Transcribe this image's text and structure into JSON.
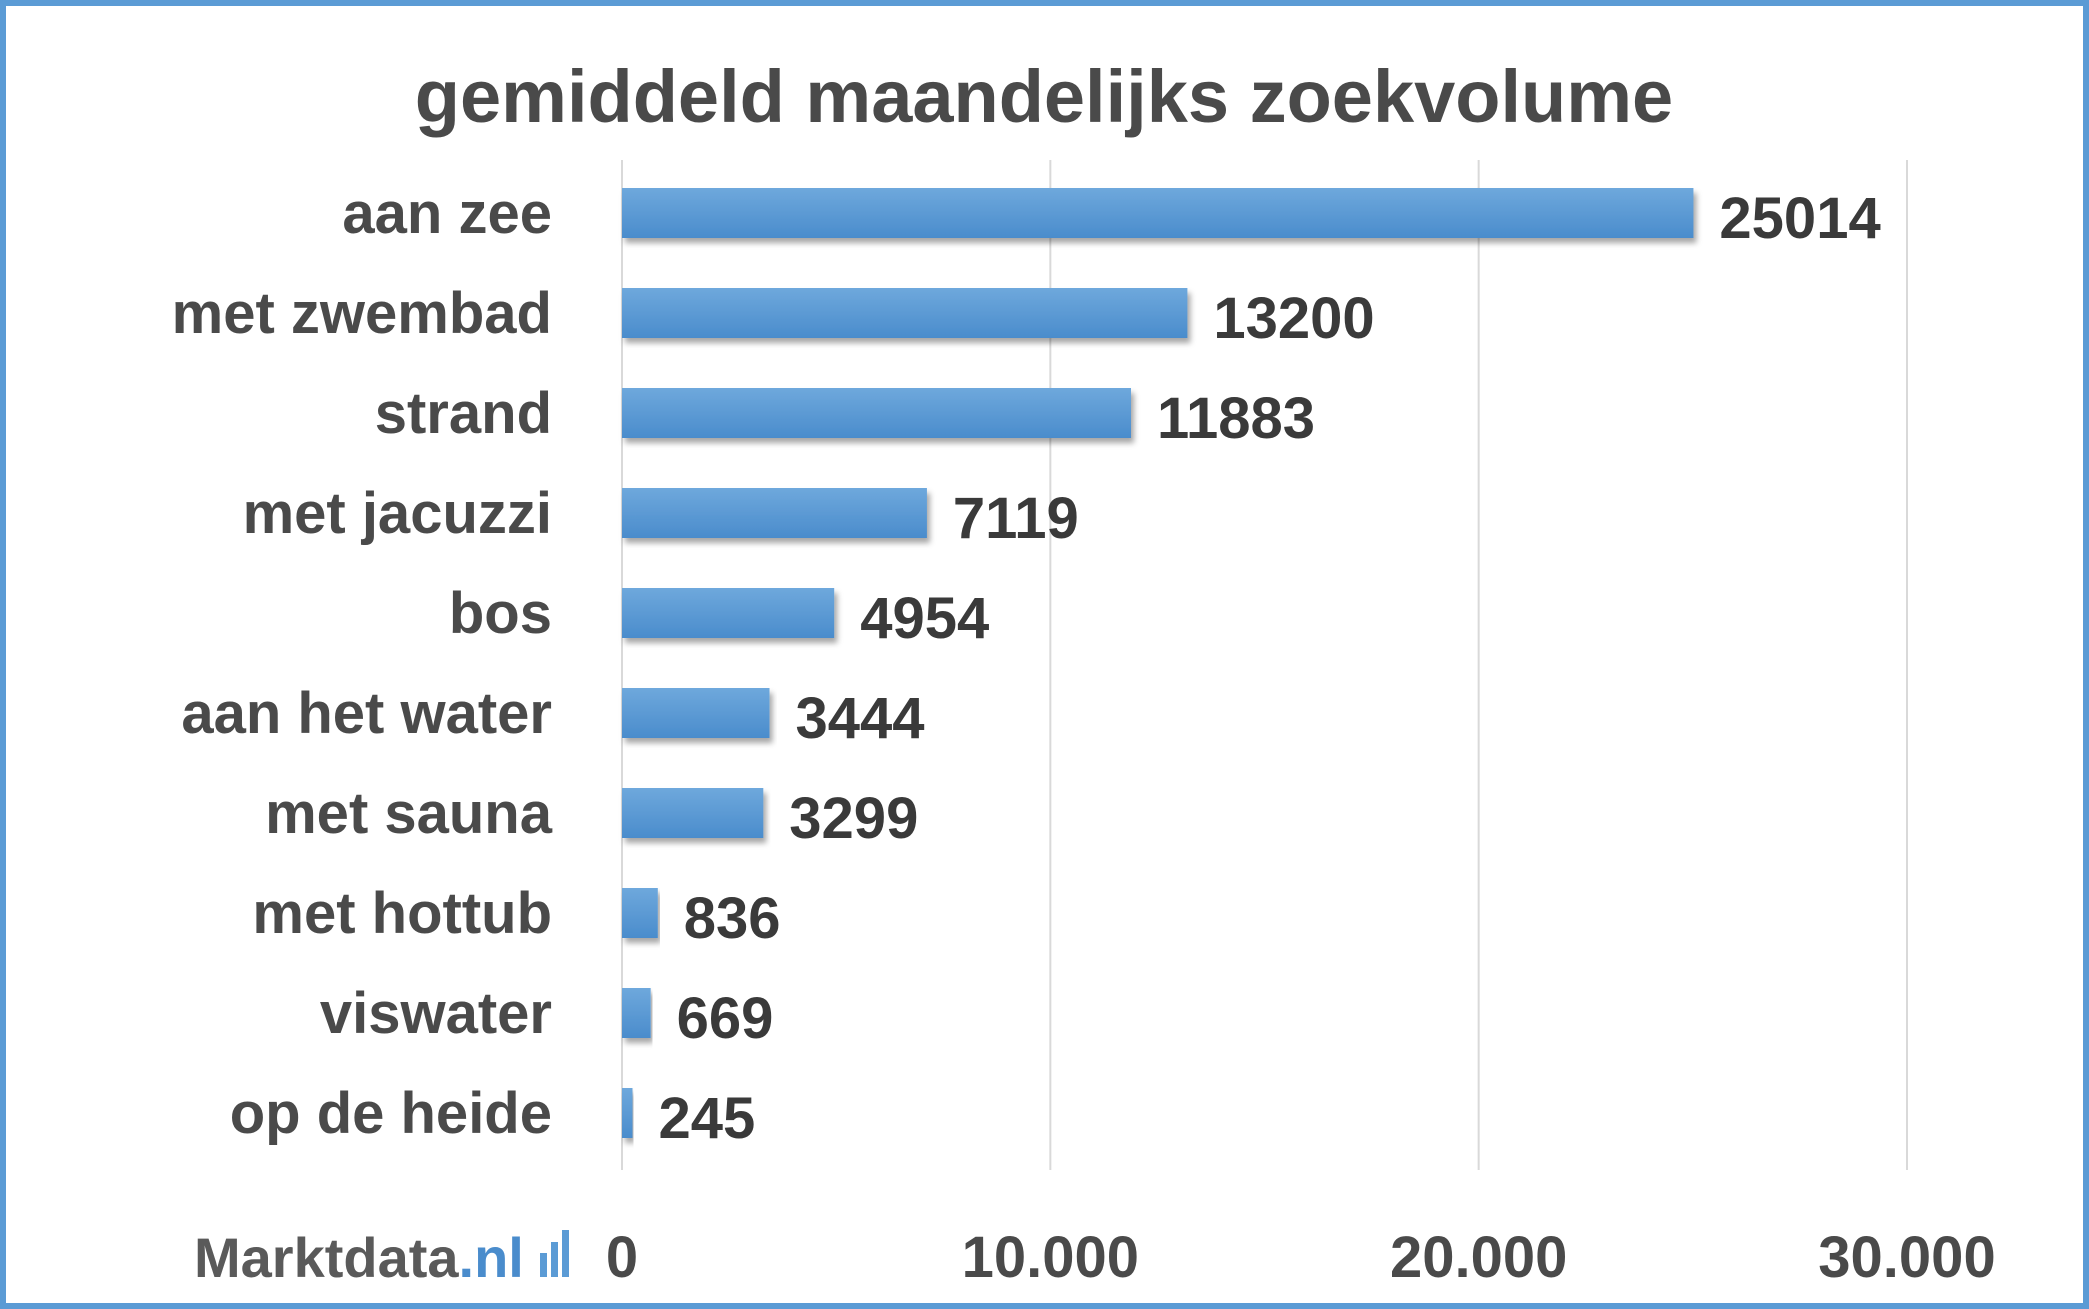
{
  "logo": {
    "text": "Marktdata",
    "suffix": ".nl"
  },
  "colors": {
    "bar": "#5b9bd5",
    "frame": "#5b9bd5",
    "grid": "#d9d9d9",
    "text": "#4a4a4a"
  },
  "chart_data": {
    "type": "bar",
    "orientation": "horizontal",
    "title": "gemiddeld maandelijks zoekvolume",
    "categories": [
      "aan zee",
      "met zwembad",
      "strand",
      "met jacuzzi",
      "bos",
      "aan het water",
      "met sauna",
      "met hottub",
      "viswater",
      "op de heide"
    ],
    "values": [
      25014,
      13200,
      11883,
      7119,
      4954,
      3444,
      3299,
      836,
      669,
      245
    ],
    "value_labels": [
      "25014",
      "13200",
      "11883",
      "7119",
      "4954",
      "3444",
      "3299",
      "836",
      "669",
      "245"
    ],
    "xlim": [
      0,
      30000
    ],
    "ticks": [
      0,
      10000,
      20000,
      30000
    ],
    "tick_labels": [
      "0",
      "10.000",
      "20.000",
      "30.000"
    ],
    "grid": true,
    "legend": "none"
  }
}
